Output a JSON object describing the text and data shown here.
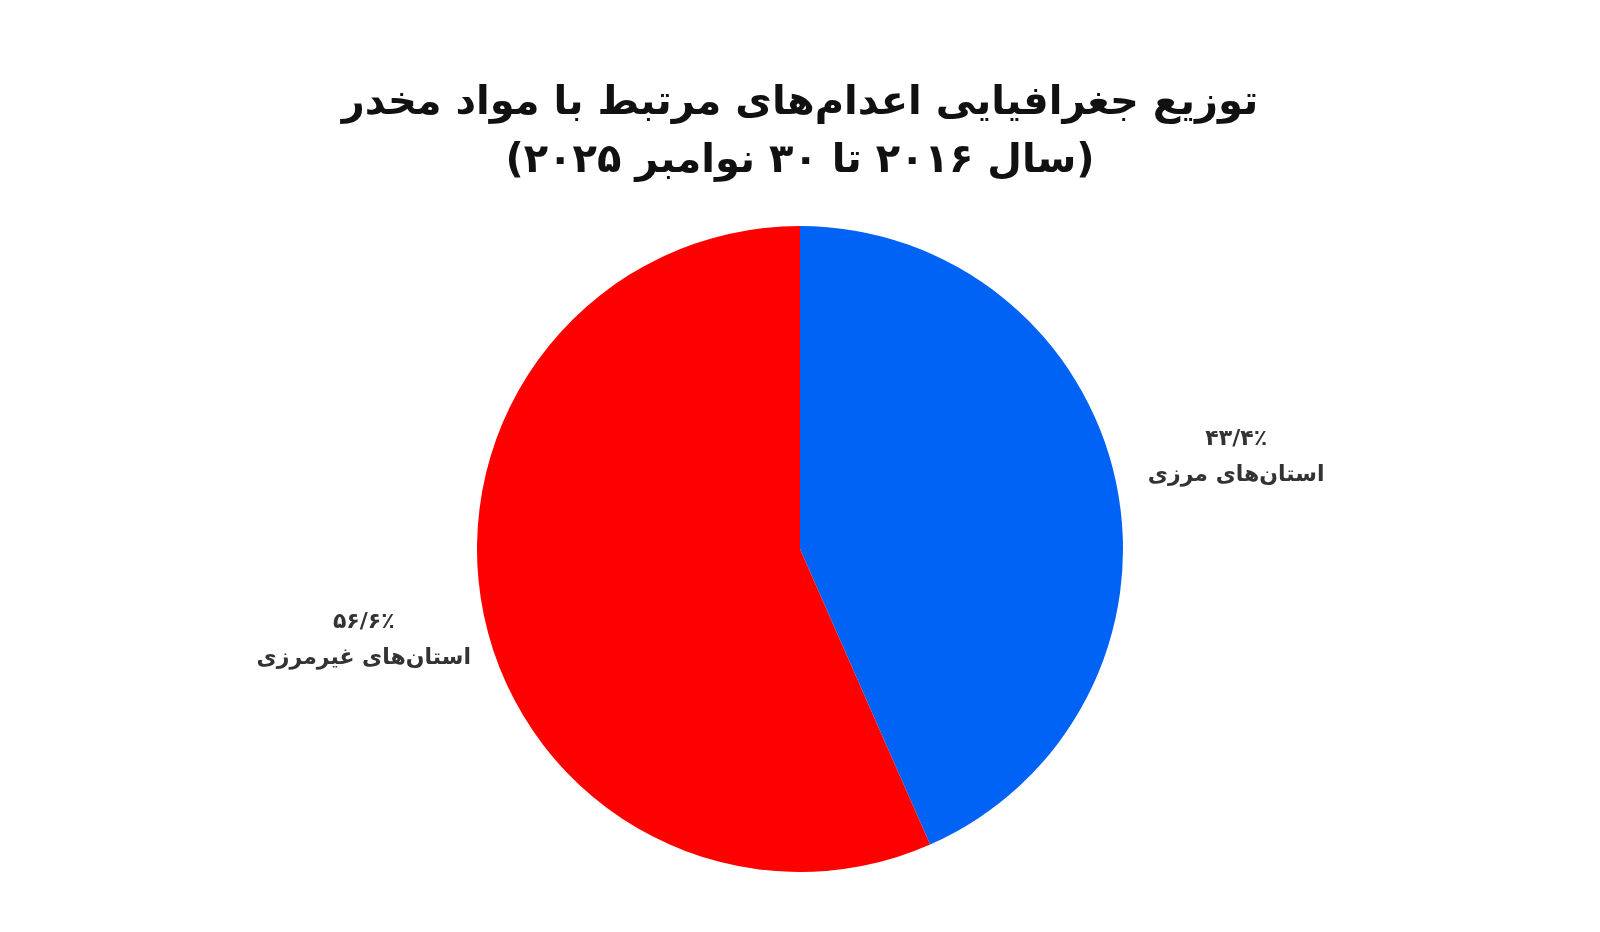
{
  "chart_data": {
    "type": "pie",
    "title": "توزیع جغرافیایی اعدام‌های مرتبط با مواد مخدر",
    "subtitle": "(سال ۲۰۱۶ تا ۳۰ نوامبر ۲۰۲۵)",
    "categories": [
      "استان‌های مرزی",
      "استان‌های غیرمرزی"
    ],
    "values": [
      43.4,
      56.6
    ],
    "value_labels": [
      "۴۳/۴٪",
      "۵۶/۶٪"
    ],
    "colors": [
      "#0063f5",
      "#ff0000"
    ],
    "legend": false
  }
}
